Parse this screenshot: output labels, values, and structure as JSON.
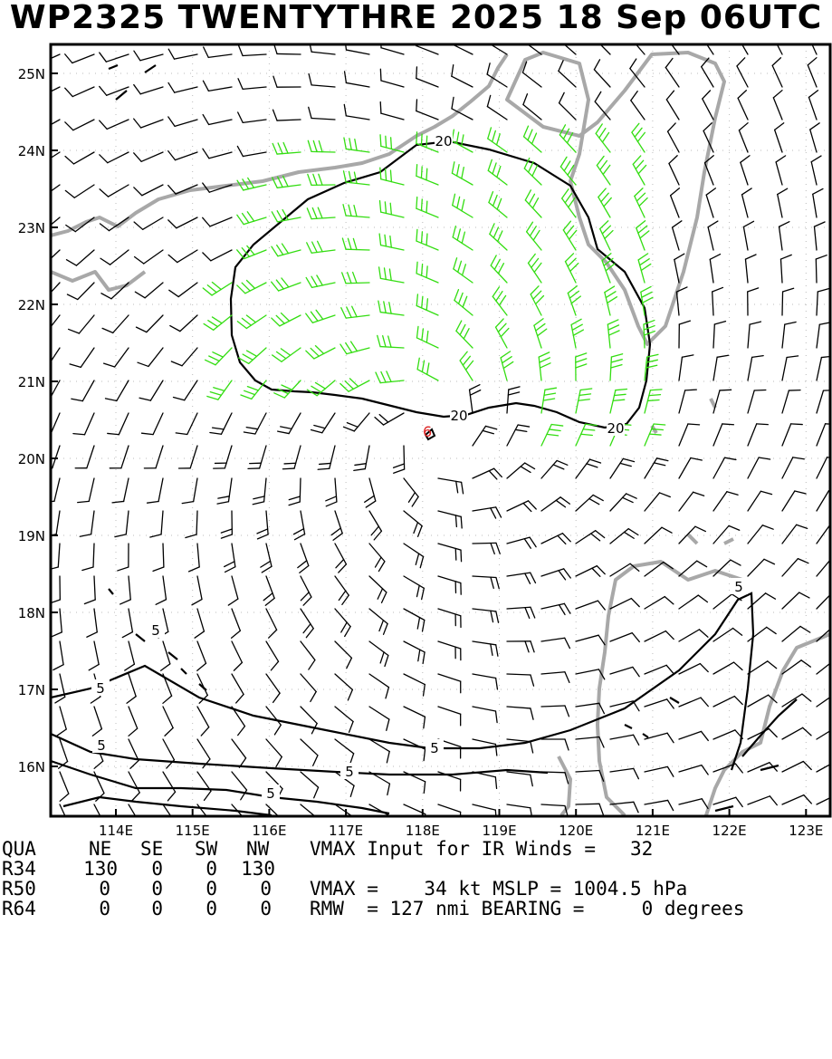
{
  "title": "WP2325 TWENTYTHRE 2025 18 Sep 06UTC",
  "map": {
    "lat_labels": [
      "25N",
      "24N",
      "23N",
      "22N",
      "21N",
      "20N",
      "19N",
      "18N",
      "17N",
      "16N"
    ],
    "lon_labels": [
      "114E",
      "115E",
      "116E",
      "117E",
      "118E",
      "119E",
      "120E",
      "121E",
      "122E",
      "123E"
    ],
    "contour_labels": [
      "20",
      "20",
      "20",
      "5",
      "5",
      "5",
      "5",
      "5",
      "5",
      "5"
    ],
    "storm_center": {
      "lat": 20.3,
      "lon": 118.1
    },
    "colors": {
      "frame": "#000000",
      "coast": "#a8a8a8",
      "barb_strong": "#33dd11",
      "barb_weak": "#000000",
      "center": "#dd2222"
    }
  },
  "table": {
    "header": {
      "label": "QUA",
      "cols": [
        "NE",
        "SE",
        "SW",
        "NW"
      ]
    },
    "rows": [
      {
        "label": "R34",
        "values": [
          "130",
          "0",
          "0",
          "130"
        ]
      },
      {
        "label": "R50",
        "values": [
          "0",
          "0",
          "0",
          "0"
        ]
      },
      {
        "label": "R64",
        "values": [
          "0",
          "0",
          "0",
          "0"
        ]
      }
    ]
  },
  "summary": {
    "line1": "VMAX Input for IR Winds =   32",
    "line2": "VMAX =    34 kt MSLP = 1004.5 hPa",
    "line3": "RMW  = 127 nmi BEARING =     0 degrees"
  }
}
